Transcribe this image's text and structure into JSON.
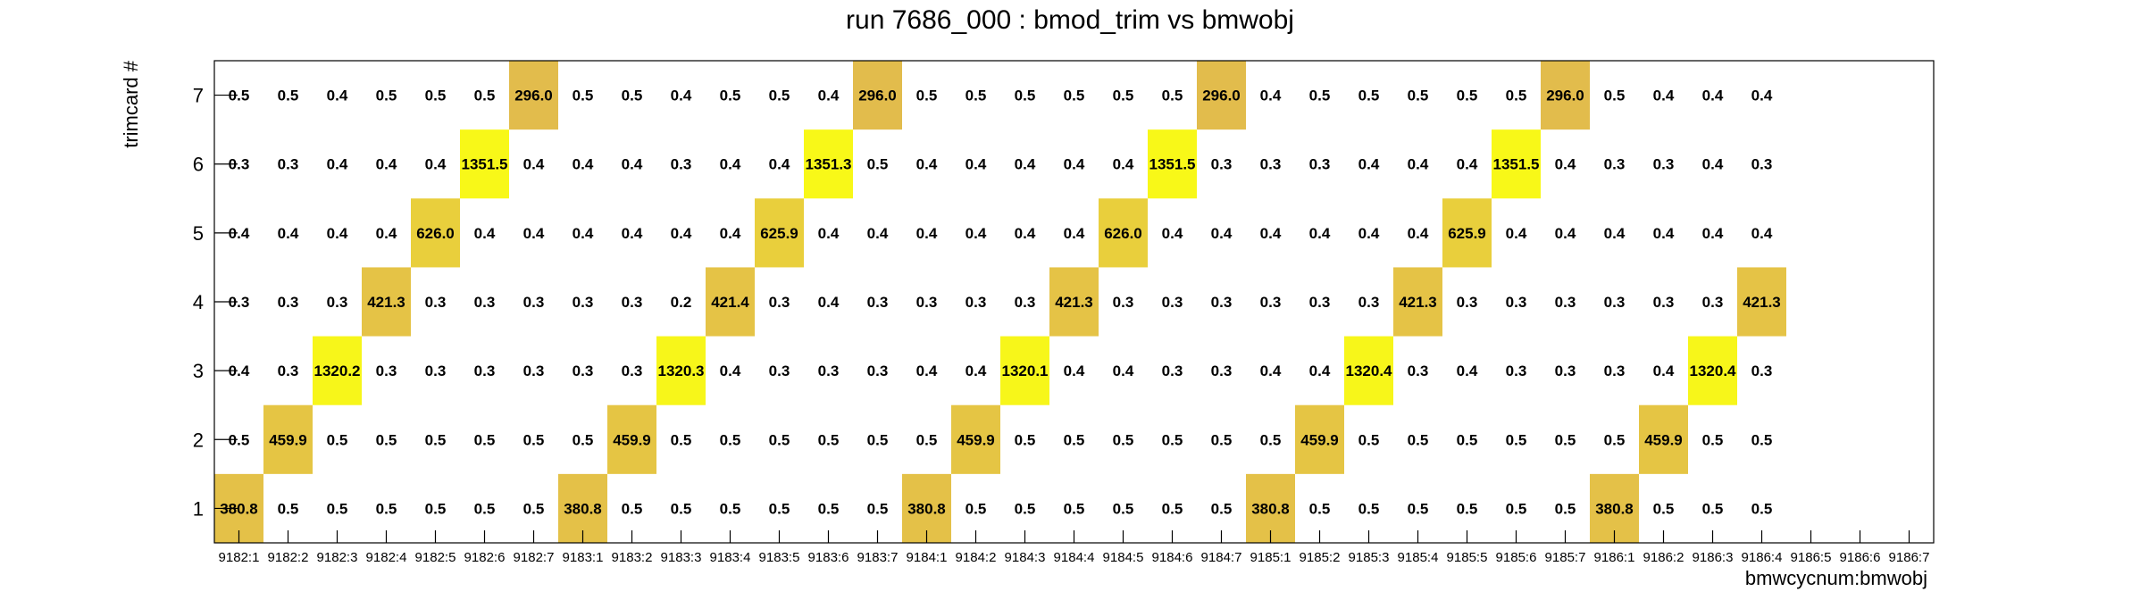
{
  "chart_data": {
    "type": "heatmap",
    "title": "run 7686_000 : bmod_trim vs bmwobj",
    "xlabel": "bmwcycnum:bmwobj",
    "ylabel": "trimcard #",
    "x": [
      "9182:1",
      "9182:2",
      "9182:3",
      "9182:4",
      "9182:5",
      "9182:6",
      "9182:7",
      "9183:1",
      "9183:2",
      "9183:3",
      "9183:4",
      "9183:5",
      "9183:6",
      "9183:7",
      "9184:1",
      "9184:2",
      "9184:3",
      "9184:4",
      "9184:5",
      "9184:6",
      "9184:7",
      "9185:1",
      "9185:2",
      "9185:3",
      "9185:4",
      "9185:5",
      "9185:6",
      "9185:7",
      "9186:1",
      "9186:2",
      "9186:3",
      "9186:4",
      "9186:5",
      "9186:6",
      "9186:7"
    ],
    "y": [
      "1",
      "2",
      "3",
      "4",
      "5",
      "6",
      "7"
    ],
    "values": [
      [
        "380.8",
        "0.5",
        "0.5",
        "0.5",
        "0.5",
        "0.5",
        "0.5",
        "380.8",
        "0.5",
        "0.5",
        "0.5",
        "0.5",
        "0.5",
        "0.5",
        "380.8",
        "0.5",
        "0.5",
        "0.5",
        "0.5",
        "0.5",
        "0.5",
        "380.8",
        "0.5",
        "0.5",
        "0.5",
        "0.5",
        "0.5",
        "0.5",
        "380.8",
        "0.5",
        "0.5",
        "0.5",
        null,
        null,
        null
      ],
      [
        "0.5",
        "459.9",
        "0.5",
        "0.5",
        "0.5",
        "0.5",
        "0.5",
        "0.5",
        "459.9",
        "0.5",
        "0.5",
        "0.5",
        "0.5",
        "0.5",
        "0.5",
        "459.9",
        "0.5",
        "0.5",
        "0.5",
        "0.5",
        "0.5",
        "0.5",
        "459.9",
        "0.5",
        "0.5",
        "0.5",
        "0.5",
        "0.5",
        "0.5",
        "459.9",
        "0.5",
        "0.5",
        null,
        null,
        null
      ],
      [
        "0.4",
        "0.3",
        "1320.2",
        "0.3",
        "0.3",
        "0.3",
        "0.3",
        "0.3",
        "0.3",
        "1320.3",
        "0.4",
        "0.3",
        "0.3",
        "0.3",
        "0.4",
        "0.4",
        "1320.1",
        "0.4",
        "0.4",
        "0.3",
        "0.3",
        "0.4",
        "0.4",
        "1320.4",
        "0.3",
        "0.4",
        "0.3",
        "0.3",
        "0.3",
        "0.4",
        "1320.4",
        "0.3",
        null,
        null,
        null
      ],
      [
        "0.3",
        "0.3",
        "0.3",
        "421.3",
        "0.3",
        "0.3",
        "0.3",
        "0.3",
        "0.3",
        "0.2",
        "421.4",
        "0.3",
        "0.4",
        "0.3",
        "0.3",
        "0.3",
        "0.3",
        "421.3",
        "0.3",
        "0.3",
        "0.3",
        "0.3",
        "0.3",
        "0.3",
        "421.3",
        "0.3",
        "0.3",
        "0.3",
        "0.3",
        "0.3",
        "0.3",
        "421.3",
        null,
        null,
        null
      ],
      [
        "0.4",
        "0.4",
        "0.4",
        "0.4",
        "626.0",
        "0.4",
        "0.4",
        "0.4",
        "0.4",
        "0.4",
        "0.4",
        "625.9",
        "0.4",
        "0.4",
        "0.4",
        "0.4",
        "0.4",
        "0.4",
        "626.0",
        "0.4",
        "0.4",
        "0.4",
        "0.4",
        "0.4",
        "0.4",
        "625.9",
        "0.4",
        "0.4",
        "0.4",
        "0.4",
        "0.4",
        "0.4",
        null,
        null,
        null
      ],
      [
        "0.3",
        "0.3",
        "0.4",
        "0.4",
        "0.4",
        "1351.5",
        "0.4",
        "0.4",
        "0.4",
        "0.3",
        "0.4",
        "0.4",
        "1351.3",
        "0.5",
        "0.4",
        "0.4",
        "0.4",
        "0.4",
        "0.4",
        "1351.5",
        "0.3",
        "0.3",
        "0.3",
        "0.4",
        "0.4",
        "0.4",
        "1351.5",
        "0.4",
        "0.3",
        "0.3",
        "0.4",
        "0.3",
        null,
        null,
        null
      ],
      [
        "0.5",
        "0.5",
        "0.4",
        "0.5",
        "0.5",
        "0.5",
        "296.0",
        "0.5",
        "0.5",
        "0.4",
        "0.5",
        "0.5",
        "0.4",
        "296.0",
        "0.5",
        "0.5",
        "0.5",
        "0.5",
        "0.5",
        "0.5",
        "296.0",
        "0.4",
        "0.5",
        "0.5",
        "0.5",
        "0.5",
        "0.5",
        "296.0",
        "0.5",
        "0.4",
        "0.4",
        "0.4",
        null,
        null,
        null
      ]
    ],
    "colorscale": [
      "#e2bc4c",
      "#f8f818"
    ],
    "grid": false,
    "legend": "none"
  }
}
